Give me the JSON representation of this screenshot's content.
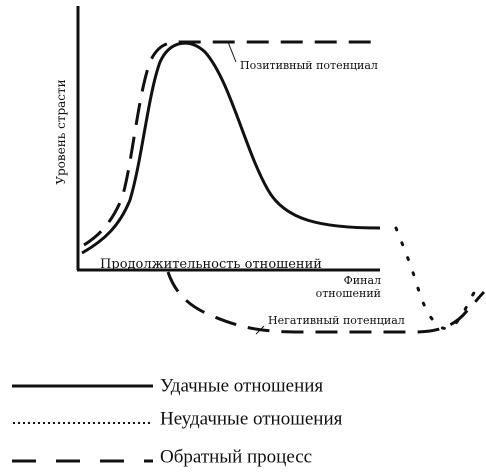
{
  "chart_data": {
    "type": "line",
    "ylabel": "Уровень страсти",
    "xlabel": "Продолжительность отношений",
    "x_end_label": [
      "Финал",
      "отношений"
    ],
    "annotations": {
      "positive": "Позитивный потенциал",
      "negative": "Негативный потенциал"
    },
    "grid": false,
    "legend_position": "bottom",
    "series": [
      {
        "name": "Удачные отношения",
        "style": "solid",
        "color": "#111111",
        "points": [
          [
            0.0,
            0.1
          ],
          [
            0.1,
            0.25
          ],
          [
            0.15,
            0.55
          ],
          [
            0.2,
            0.9
          ],
          [
            0.24,
            0.98
          ],
          [
            0.3,
            0.92
          ],
          [
            0.4,
            0.6
          ],
          [
            0.45,
            0.4
          ],
          [
            0.6,
            0.22
          ],
          [
            1.0,
            0.2
          ]
        ]
      },
      {
        "name": "Неудачные отношения",
        "style": "dotted",
        "color": "#111111",
        "points": [
          [
            1.05,
            0.16
          ],
          [
            1.12,
            -0.05
          ],
          [
            1.18,
            -0.28
          ],
          [
            1.22,
            -0.38
          ],
          [
            1.29,
            -0.3
          ],
          [
            1.32,
            -0.15
          ]
        ]
      },
      {
        "name": "Обратный процесс",
        "style": "dashed",
        "color": "#111111",
        "points": [
          [
            0.0,
            0.12
          ],
          [
            0.1,
            0.3
          ],
          [
            0.15,
            0.65
          ],
          [
            0.2,
            0.95
          ],
          [
            0.25,
            1.0
          ],
          [
            1.0,
            1.0
          ]
        ],
        "points_negative": [
          [
            0.3,
            0.0
          ],
          [
            0.36,
            -0.15
          ],
          [
            0.6,
            -0.26
          ],
          [
            1.12,
            -0.28
          ],
          [
            1.26,
            -0.25
          ],
          [
            1.32,
            -0.1
          ]
        ]
      }
    ]
  }
}
